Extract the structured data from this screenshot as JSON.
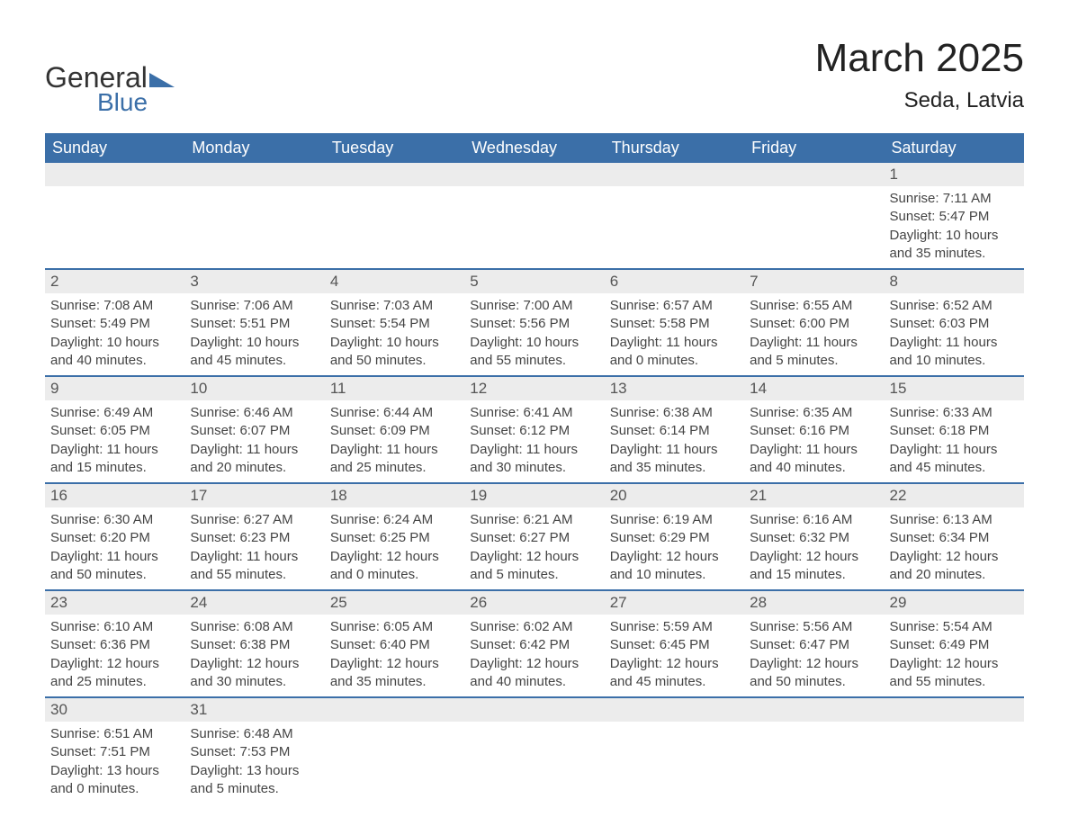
{
  "logo": {
    "text_general": "General",
    "text_blue": "Blue",
    "triangle_color": "#3b6fa8"
  },
  "title": "March 2025",
  "location": "Seda, Latvia",
  "colors": {
    "header_bg": "#3b6fa8",
    "header_text": "#ffffff",
    "daynum_bg": "#ececec",
    "daynum_text": "#555555",
    "body_text": "#444444",
    "row_divider": "#3b6fa8",
    "page_bg": "#ffffff"
  },
  "fonts": {
    "month_title_size_pt": 33,
    "location_size_pt": 18,
    "weekday_size_pt": 14,
    "daynum_size_pt": 13,
    "info_size_pt": 11
  },
  "weekdays": [
    "Sunday",
    "Monday",
    "Tuesday",
    "Wednesday",
    "Thursday",
    "Friday",
    "Saturday"
  ],
  "weeks": [
    [
      null,
      null,
      null,
      null,
      null,
      null,
      {
        "n": "1",
        "sunrise": "7:11 AM",
        "sunset": "5:47 PM",
        "daylight": "10 hours and 35 minutes."
      }
    ],
    [
      {
        "n": "2",
        "sunrise": "7:08 AM",
        "sunset": "5:49 PM",
        "daylight": "10 hours and 40 minutes."
      },
      {
        "n": "3",
        "sunrise": "7:06 AM",
        "sunset": "5:51 PM",
        "daylight": "10 hours and 45 minutes."
      },
      {
        "n": "4",
        "sunrise": "7:03 AM",
        "sunset": "5:54 PM",
        "daylight": "10 hours and 50 minutes."
      },
      {
        "n": "5",
        "sunrise": "7:00 AM",
        "sunset": "5:56 PM",
        "daylight": "10 hours and 55 minutes."
      },
      {
        "n": "6",
        "sunrise": "6:57 AM",
        "sunset": "5:58 PM",
        "daylight": "11 hours and 0 minutes."
      },
      {
        "n": "7",
        "sunrise": "6:55 AM",
        "sunset": "6:00 PM",
        "daylight": "11 hours and 5 minutes."
      },
      {
        "n": "8",
        "sunrise": "6:52 AM",
        "sunset": "6:03 PM",
        "daylight": "11 hours and 10 minutes."
      }
    ],
    [
      {
        "n": "9",
        "sunrise": "6:49 AM",
        "sunset": "6:05 PM",
        "daylight": "11 hours and 15 minutes."
      },
      {
        "n": "10",
        "sunrise": "6:46 AM",
        "sunset": "6:07 PM",
        "daylight": "11 hours and 20 minutes."
      },
      {
        "n": "11",
        "sunrise": "6:44 AM",
        "sunset": "6:09 PM",
        "daylight": "11 hours and 25 minutes."
      },
      {
        "n": "12",
        "sunrise": "6:41 AM",
        "sunset": "6:12 PM",
        "daylight": "11 hours and 30 minutes."
      },
      {
        "n": "13",
        "sunrise": "6:38 AM",
        "sunset": "6:14 PM",
        "daylight": "11 hours and 35 minutes."
      },
      {
        "n": "14",
        "sunrise": "6:35 AM",
        "sunset": "6:16 PM",
        "daylight": "11 hours and 40 minutes."
      },
      {
        "n": "15",
        "sunrise": "6:33 AM",
        "sunset": "6:18 PM",
        "daylight": "11 hours and 45 minutes."
      }
    ],
    [
      {
        "n": "16",
        "sunrise": "6:30 AM",
        "sunset": "6:20 PM",
        "daylight": "11 hours and 50 minutes."
      },
      {
        "n": "17",
        "sunrise": "6:27 AM",
        "sunset": "6:23 PM",
        "daylight": "11 hours and 55 minutes."
      },
      {
        "n": "18",
        "sunrise": "6:24 AM",
        "sunset": "6:25 PM",
        "daylight": "12 hours and 0 minutes."
      },
      {
        "n": "19",
        "sunrise": "6:21 AM",
        "sunset": "6:27 PM",
        "daylight": "12 hours and 5 minutes."
      },
      {
        "n": "20",
        "sunrise": "6:19 AM",
        "sunset": "6:29 PM",
        "daylight": "12 hours and 10 minutes."
      },
      {
        "n": "21",
        "sunrise": "6:16 AM",
        "sunset": "6:32 PM",
        "daylight": "12 hours and 15 minutes."
      },
      {
        "n": "22",
        "sunrise": "6:13 AM",
        "sunset": "6:34 PM",
        "daylight": "12 hours and 20 minutes."
      }
    ],
    [
      {
        "n": "23",
        "sunrise": "6:10 AM",
        "sunset": "6:36 PM",
        "daylight": "12 hours and 25 minutes."
      },
      {
        "n": "24",
        "sunrise": "6:08 AM",
        "sunset": "6:38 PM",
        "daylight": "12 hours and 30 minutes."
      },
      {
        "n": "25",
        "sunrise": "6:05 AM",
        "sunset": "6:40 PM",
        "daylight": "12 hours and 35 minutes."
      },
      {
        "n": "26",
        "sunrise": "6:02 AM",
        "sunset": "6:42 PM",
        "daylight": "12 hours and 40 minutes."
      },
      {
        "n": "27",
        "sunrise": "5:59 AM",
        "sunset": "6:45 PM",
        "daylight": "12 hours and 45 minutes."
      },
      {
        "n": "28",
        "sunrise": "5:56 AM",
        "sunset": "6:47 PM",
        "daylight": "12 hours and 50 minutes."
      },
      {
        "n": "29",
        "sunrise": "5:54 AM",
        "sunset": "6:49 PM",
        "daylight": "12 hours and 55 minutes."
      }
    ],
    [
      {
        "n": "30",
        "sunrise": "6:51 AM",
        "sunset": "7:51 PM",
        "daylight": "13 hours and 0 minutes."
      },
      {
        "n": "31",
        "sunrise": "6:48 AM",
        "sunset": "7:53 PM",
        "daylight": "13 hours and 5 minutes."
      },
      null,
      null,
      null,
      null,
      null
    ]
  ],
  "labels": {
    "sunrise": "Sunrise: ",
    "sunset": "Sunset: ",
    "daylight": "Daylight: "
  }
}
